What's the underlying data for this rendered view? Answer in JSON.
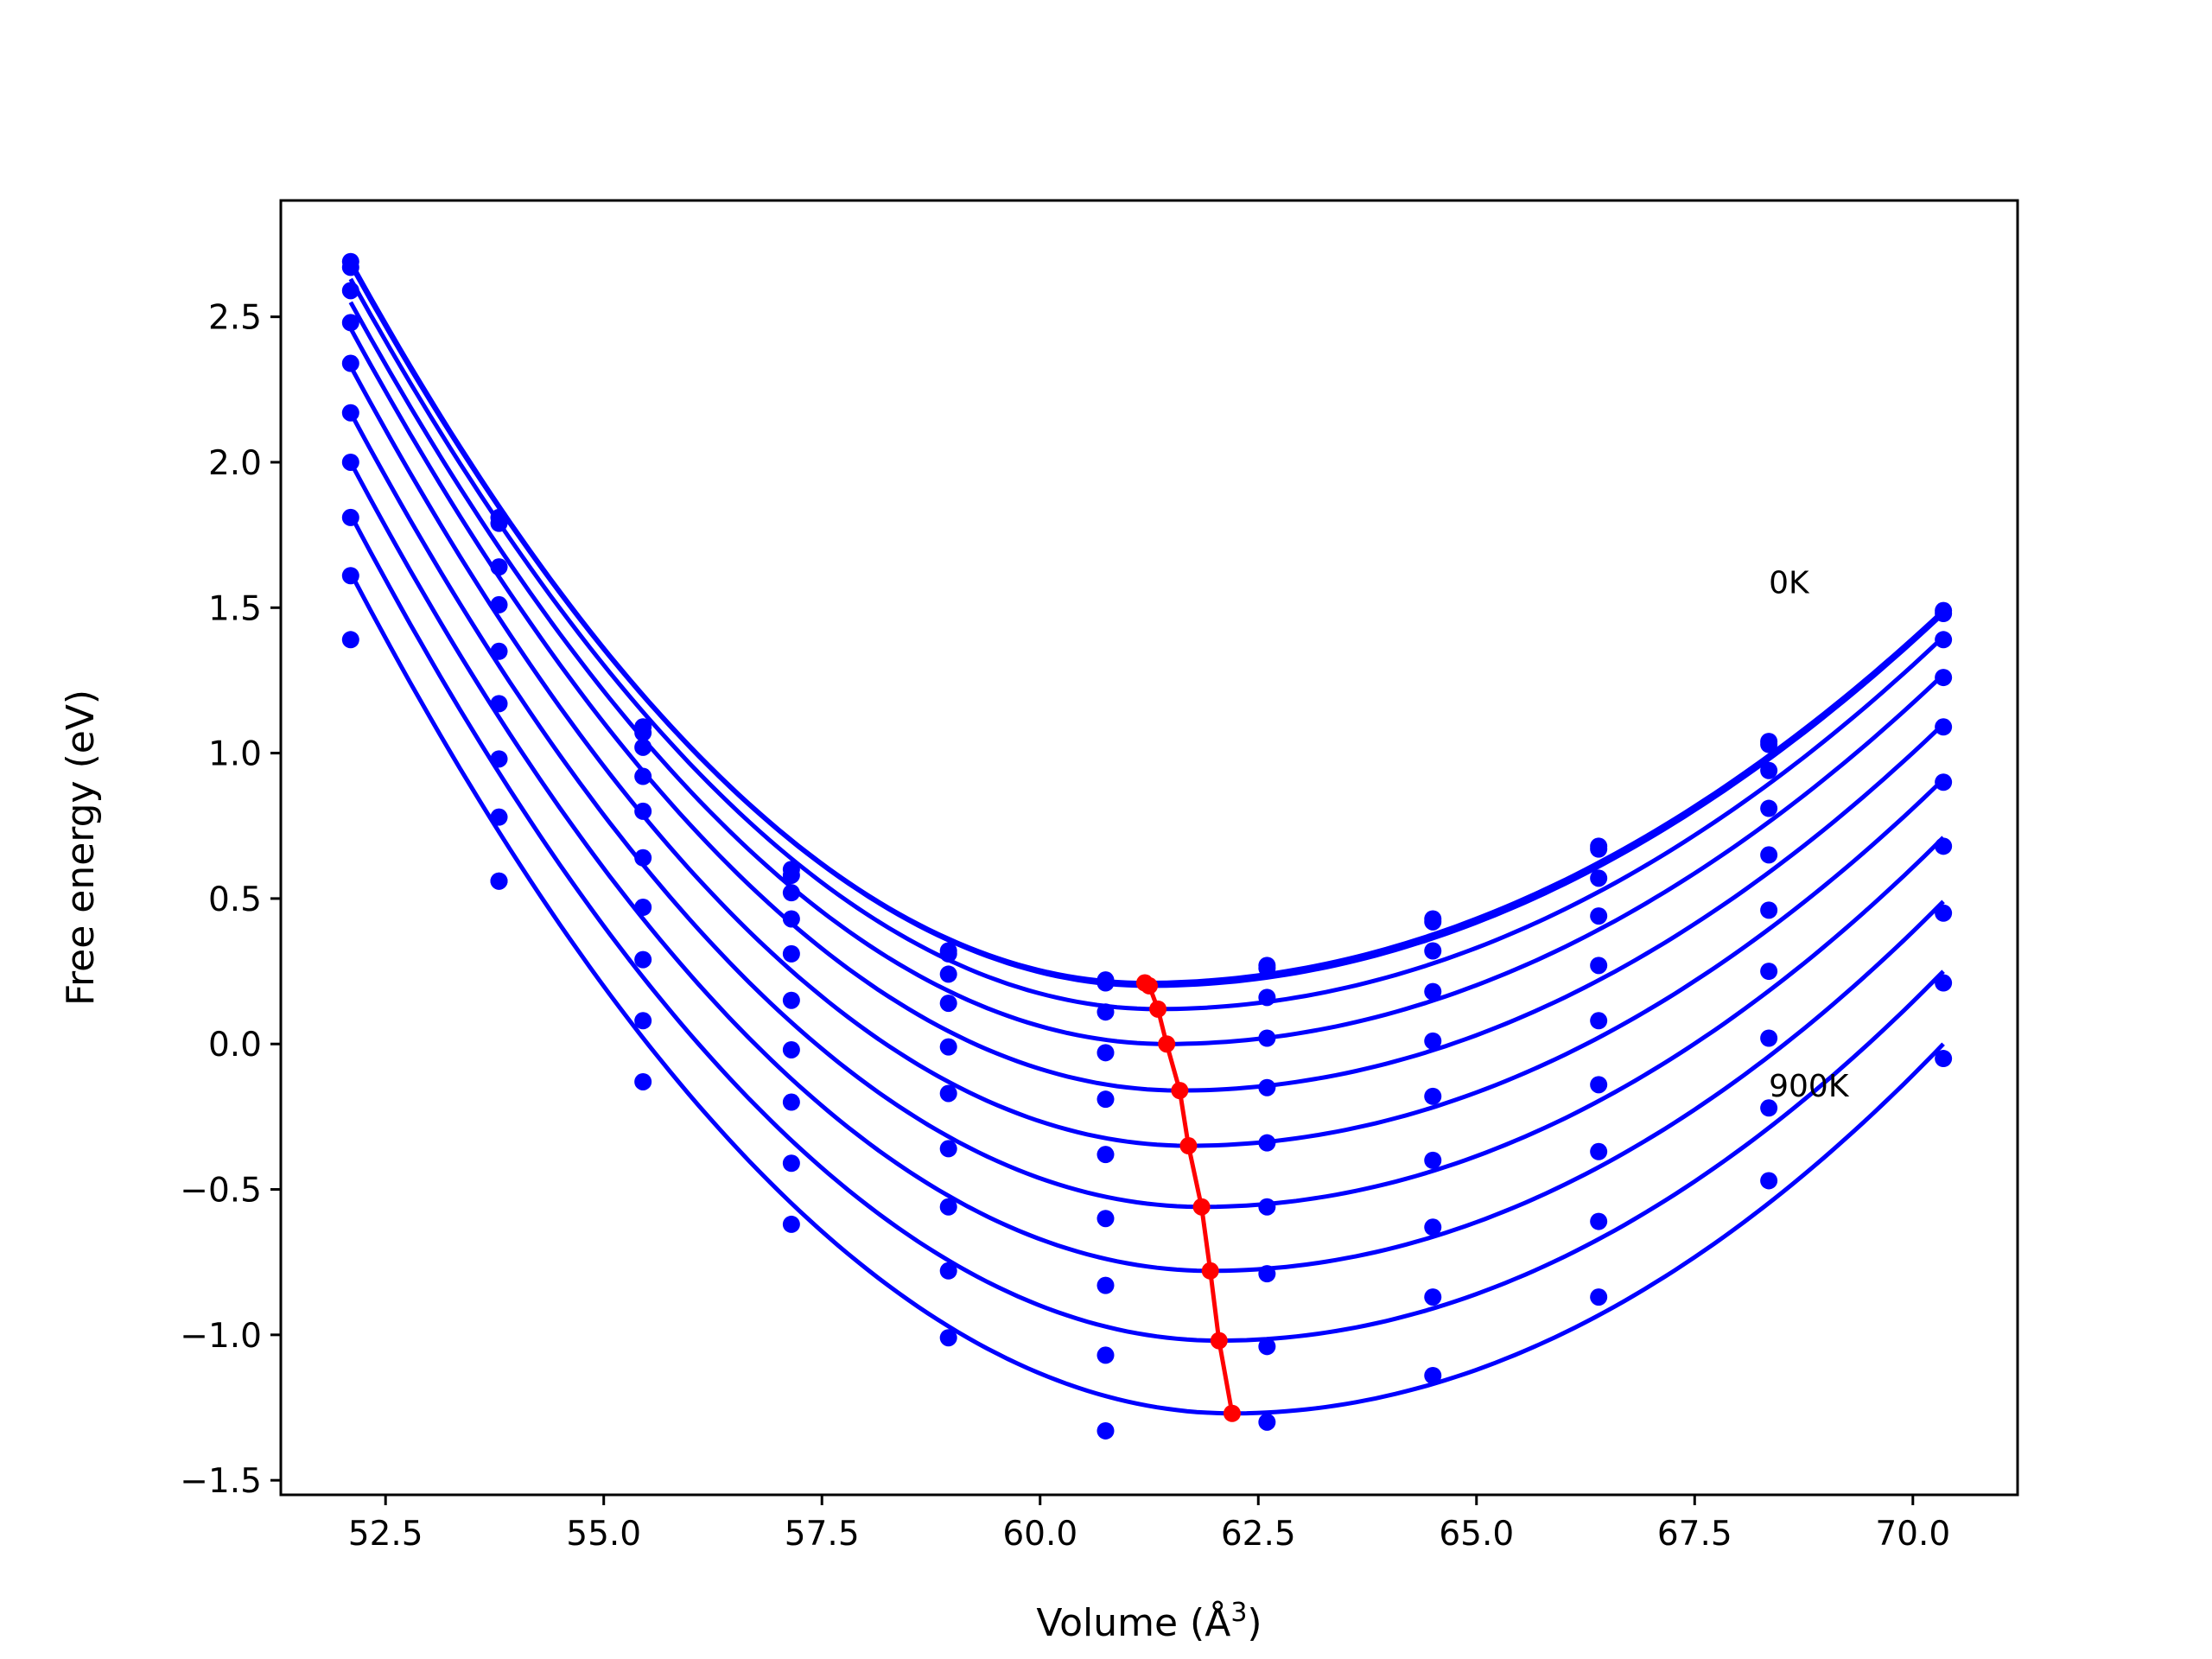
{
  "chart_data": {
    "type": "line",
    "xlabel": "Volume (Å",
    "xlabel_sup": "3",
    "xlabel_end": ")",
    "ylabel": "Free energy (eV)",
    "xlim": [
      51.3,
      71.2
    ],
    "ylim": [
      -1.55,
      2.9
    ],
    "xticks": [
      52.5,
      55.0,
      57.5,
      60.0,
      62.5,
      65.0,
      67.5,
      70.0
    ],
    "xtick_labels": [
      "52.5",
      "55.0",
      "57.5",
      "60.0",
      "62.5",
      "65.0",
      "67.5",
      "70.0"
    ],
    "yticks": [
      -1.5,
      -1.0,
      -0.5,
      0.0,
      0.5,
      1.0,
      1.5,
      2.0,
      2.5
    ],
    "ytick_labels": [
      "−1.5",
      "−1.0",
      "−0.5",
      "0.0",
      "0.5",
      "1.0",
      "1.5",
      "2.0",
      "2.5"
    ],
    "grid": false,
    "colors": {
      "curves": "#0000ff",
      "minima": "#ff0000"
    },
    "annotations": [
      {
        "text": "0K",
        "x": 68.35,
        "y": 1.55
      },
      {
        "text": "900K",
        "x": 68.35,
        "y": -0.18
      }
    ],
    "volumes": [
      52.1,
      53.8,
      55.45,
      57.15,
      58.95,
      60.75,
      62.6,
      64.5,
      66.4,
      68.35,
      70.35
    ],
    "series": [
      {
        "points": [
          2.69,
          1.81,
          1.09,
          0.6,
          0.32,
          0.22,
          0.27,
          0.43,
          0.68,
          1.04,
          1.49
        ],
        "fit_min": [
          61.2,
          0.21
        ],
        "fit_ends": [
          2.69,
          1.49
        ]
      },
      {
        "points": [
          2.67,
          1.79,
          1.07,
          0.58,
          0.31,
          0.21,
          0.26,
          0.42,
          0.67,
          1.03,
          1.48
        ],
        "fit_min": [
          61.25,
          0.2
        ],
        "fit_ends": [
          2.68,
          1.48
        ]
      },
      {
        "points": [
          2.59,
          1.64,
          1.02,
          0.52,
          0.24,
          0.11,
          0.16,
          0.32,
          0.57,
          0.94,
          1.39
        ],
        "fit_min": [
          61.35,
          0.12
        ],
        "fit_ends": [
          2.63,
          1.4
        ]
      },
      {
        "points": [
          2.48,
          1.51,
          0.92,
          0.43,
          0.14,
          -0.03,
          0.02,
          0.18,
          0.44,
          0.81,
          1.26
        ],
        "fit_min": [
          61.45,
          0.0
        ],
        "fit_ends": [
          2.55,
          1.27
        ]
      },
      {
        "points": [
          2.34,
          1.35,
          0.8,
          0.31,
          -0.01,
          -0.19,
          -0.15,
          0.01,
          0.27,
          0.65,
          1.09
        ],
        "fit_min": [
          61.6,
          -0.16
        ],
        "fit_ends": [
          2.46,
          1.1
        ]
      },
      {
        "points": [
          2.17,
          1.17,
          0.64,
          0.15,
          -0.17,
          -0.38,
          -0.34,
          -0.18,
          0.08,
          0.46,
          0.9
        ],
        "fit_min": [
          61.7,
          -0.35
        ],
        "fit_ends": [
          2.33,
          0.91
        ]
      },
      {
        "points": [
          2.0,
          0.98,
          0.47,
          -0.02,
          -0.36,
          -0.6,
          -0.56,
          -0.4,
          -0.14,
          0.25,
          0.68
        ],
        "fit_min": [
          61.85,
          -0.56
        ],
        "fit_ends": [
          2.17,
          0.71
        ]
      },
      {
        "points": [
          1.81,
          0.78,
          0.29,
          -0.2,
          -0.56,
          -0.83,
          -0.79,
          -0.63,
          -0.37,
          0.02,
          0.45
        ],
        "fit_min": [
          61.95,
          -0.78
        ],
        "fit_ends": [
          2.0,
          0.49
        ]
      },
      {
        "points": [
          1.61,
          0.56,
          0.08,
          -0.41,
          -0.78,
          -1.07,
          -1.04,
          -0.87,
          -0.61,
          -0.22,
          0.21
        ],
        "fit_min": [
          62.05,
          -1.02
        ],
        "fit_ends": [
          1.82,
          0.25
        ]
      },
      {
        "points": [
          1.39,
          0.56,
          -0.13,
          -0.62,
          -1.01,
          -1.33,
          -1.3,
          -1.14,
          -0.87,
          -0.47,
          -0.05
        ],
        "fit_min": [
          62.2,
          -1.27
        ],
        "fit_ends": [
          1.62,
          0.0
        ]
      }
    ],
    "minima_line": {
      "x": [
        61.2,
        61.25,
        61.35,
        61.45,
        61.6,
        61.7,
        61.85,
        61.95,
        62.05,
        62.2
      ],
      "y": [
        0.21,
        0.2,
        0.12,
        0.0,
        -0.16,
        -0.35,
        -0.56,
        -0.78,
        -1.02,
        -1.27
      ]
    }
  }
}
